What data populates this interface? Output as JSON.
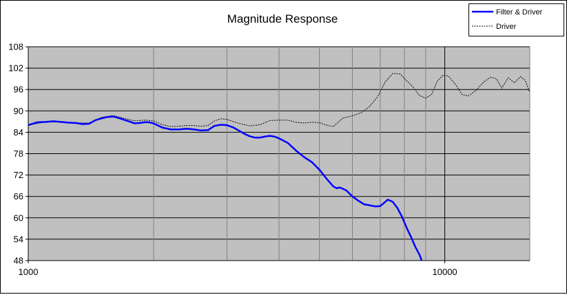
{
  "chart_data": {
    "type": "line",
    "title": "Magnitude Response",
    "xlabel": "",
    "ylabel": "",
    "x_scale": "log",
    "xlim": [
      1000,
      16000
    ],
    "ylim": [
      48,
      108
    ],
    "x_tick_labels": [
      {
        "value": 1000,
        "label": "1000"
      },
      {
        "value": 10000,
        "label": "10000"
      }
    ],
    "x_gridlines": [
      1000,
      2000,
      3000,
      4000,
      5000,
      6000,
      7000,
      8000,
      9000,
      10000,
      16000
    ],
    "y_ticks": [
      48,
      54,
      60,
      66,
      72,
      78,
      84,
      90,
      96,
      102,
      108
    ],
    "grid": true,
    "plot_background": "#c0c0c0",
    "legend_position": "top-right",
    "series": [
      {
        "name": "Filter & Driver",
        "color": "#0000ff",
        "style": "solid",
        "points": [
          [
            1000,
            86.0
          ],
          [
            1050,
            86.8
          ],
          [
            1100,
            86.9
          ],
          [
            1150,
            87.1
          ],
          [
            1200,
            86.9
          ],
          [
            1250,
            86.7
          ],
          [
            1300,
            86.6
          ],
          [
            1350,
            86.3
          ],
          [
            1400,
            86.4
          ],
          [
            1450,
            87.4
          ],
          [
            1500,
            87.9
          ],
          [
            1550,
            88.3
          ],
          [
            1600,
            88.4
          ],
          [
            1650,
            88.0
          ],
          [
            1700,
            87.5
          ],
          [
            1750,
            87.0
          ],
          [
            1800,
            86.5
          ],
          [
            1850,
            86.6
          ],
          [
            1900,
            86.8
          ],
          [
            1950,
            86.8
          ],
          [
            2000,
            86.5
          ],
          [
            2100,
            85.3
          ],
          [
            2200,
            84.8
          ],
          [
            2300,
            84.8
          ],
          [
            2400,
            85.0
          ],
          [
            2500,
            84.8
          ],
          [
            2600,
            84.5
          ],
          [
            2700,
            84.6
          ],
          [
            2800,
            85.8
          ],
          [
            2900,
            86.1
          ],
          [
            3000,
            86.0
          ],
          [
            3100,
            85.4
          ],
          [
            3200,
            84.5
          ],
          [
            3300,
            83.6
          ],
          [
            3400,
            82.9
          ],
          [
            3500,
            82.5
          ],
          [
            3600,
            82.5
          ],
          [
            3700,
            82.8
          ],
          [
            3800,
            83.0
          ],
          [
            3900,
            82.8
          ],
          [
            4000,
            82.3
          ],
          [
            4200,
            81.0
          ],
          [
            4400,
            78.8
          ],
          [
            4600,
            77.0
          ],
          [
            4800,
            75.6
          ],
          [
            5000,
            73.5
          ],
          [
            5200,
            71.0
          ],
          [
            5400,
            68.8
          ],
          [
            5500,
            68.3
          ],
          [
            5600,
            68.5
          ],
          [
            5800,
            67.7
          ],
          [
            6000,
            66.0
          ],
          [
            6200,
            64.8
          ],
          [
            6400,
            63.8
          ],
          [
            6600,
            63.5
          ],
          [
            6800,
            63.2
          ],
          [
            7000,
            63.3
          ],
          [
            7150,
            64.2
          ],
          [
            7300,
            65.1
          ],
          [
            7500,
            64.5
          ],
          [
            7700,
            62.7
          ],
          [
            7900,
            60.2
          ],
          [
            8100,
            57.2
          ],
          [
            8300,
            54.6
          ],
          [
            8500,
            51.8
          ],
          [
            8700,
            49.6
          ],
          [
            8800,
            48.0
          ]
        ]
      },
      {
        "name": "Driver",
        "color": "#000000",
        "style": "dashed",
        "points": [
          [
            1000,
            86.0
          ],
          [
            1100,
            86.9
          ],
          [
            1200,
            86.9
          ],
          [
            1300,
            86.6
          ],
          [
            1400,
            86.6
          ],
          [
            1500,
            88.2
          ],
          [
            1600,
            88.7
          ],
          [
            1700,
            87.9
          ],
          [
            1800,
            87.2
          ],
          [
            1900,
            87.4
          ],
          [
            2000,
            87.2
          ],
          [
            2100,
            86.1
          ],
          [
            2200,
            85.6
          ],
          [
            2300,
            85.7
          ],
          [
            2400,
            85.9
          ],
          [
            2500,
            85.9
          ],
          [
            2600,
            85.7
          ],
          [
            2700,
            85.9
          ],
          [
            2800,
            87.2
          ],
          [
            2900,
            87.8
          ],
          [
            3000,
            87.6
          ],
          [
            3200,
            86.5
          ],
          [
            3400,
            85.8
          ],
          [
            3600,
            86.1
          ],
          [
            3800,
            87.3
          ],
          [
            4000,
            87.4
          ],
          [
            4200,
            87.4
          ],
          [
            4400,
            86.8
          ],
          [
            4600,
            86.6
          ],
          [
            4800,
            86.8
          ],
          [
            5000,
            86.7
          ],
          [
            5200,
            86.0
          ],
          [
            5400,
            85.6
          ],
          [
            5700,
            88.0
          ],
          [
            6000,
            88.6
          ],
          [
            6300,
            89.5
          ],
          [
            6600,
            91.2
          ],
          [
            6900,
            94.0
          ],
          [
            7200,
            98.2
          ],
          [
            7500,
            100.5
          ],
          [
            7800,
            100.4
          ],
          [
            8100,
            98.5
          ],
          [
            8400,
            96.6
          ],
          [
            8700,
            94.3
          ],
          [
            9000,
            93.6
          ],
          [
            9300,
            94.6
          ],
          [
            9600,
            98.4
          ],
          [
            9900,
            100.0
          ],
          [
            10200,
            99.8
          ],
          [
            10600,
            97.5
          ],
          [
            11000,
            94.6
          ],
          [
            11400,
            94.2
          ],
          [
            11900,
            95.8
          ],
          [
            12400,
            98.1
          ],
          [
            12900,
            99.5
          ],
          [
            13300,
            99.0
          ],
          [
            13700,
            96.4
          ],
          [
            14200,
            99.3
          ],
          [
            14700,
            97.9
          ],
          [
            15200,
            99.6
          ],
          [
            15600,
            98.6
          ],
          [
            16000,
            95.2
          ]
        ]
      }
    ]
  }
}
